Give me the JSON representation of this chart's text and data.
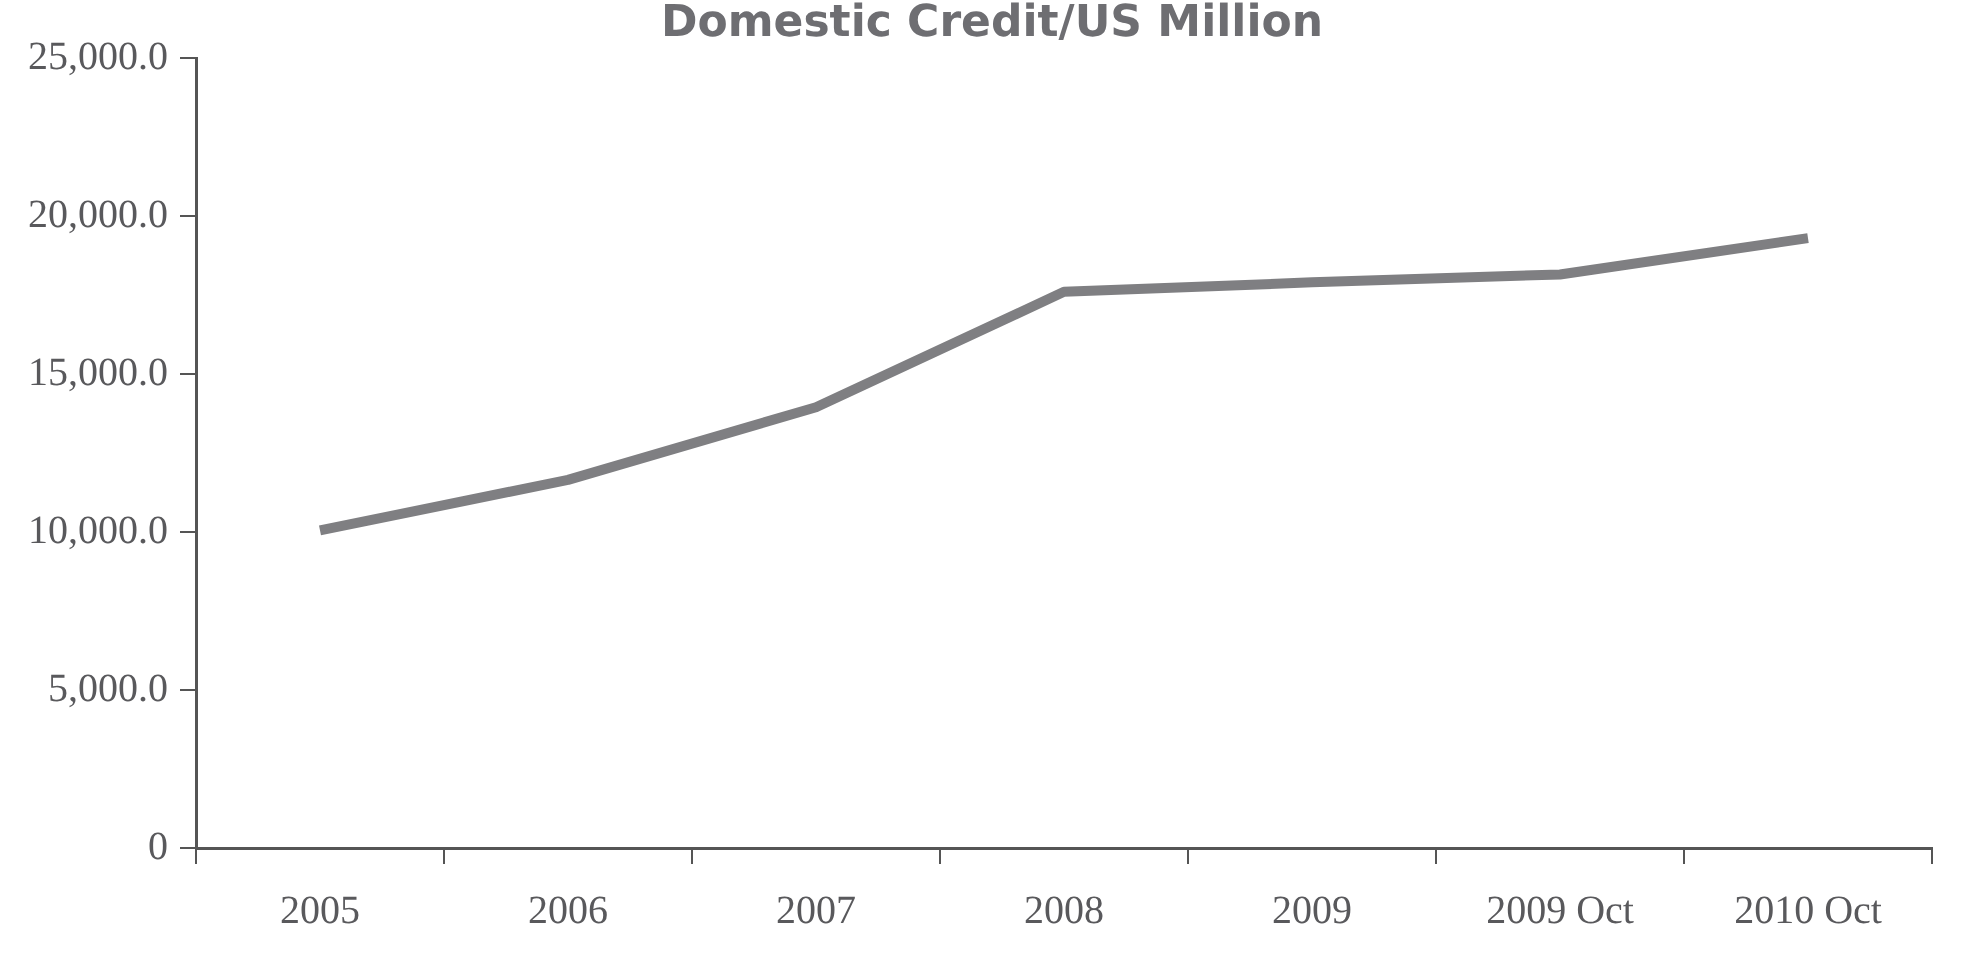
{
  "chart_data": {
    "type": "line",
    "title": "Domestic Credit/US Million",
    "categories": [
      "2005",
      "2006",
      "2007",
      "2008",
      "2009",
      "2009 Oct",
      "2010 Oct"
    ],
    "series": [
      {
        "color": "#7f7f82",
        "values": [
          10050,
          11650,
          13950,
          17600,
          17900,
          18150,
          19300
        ]
      }
    ],
    "ylim": [
      0,
      25000
    ],
    "yticks": [
      0,
      {
        "value": 5000,
        "label": "5,000.0"
      },
      {
        "value": 10000,
        "label": "10,000.0"
      },
      {
        "value": 15000,
        "label": "15,000.0"
      },
      {
        "value": 20000,
        "label": "20,000.0"
      },
      {
        "value": 25000,
        "label": "25,000.0"
      }
    ],
    "grid": false,
    "legend": false,
    "marker": "none",
    "line_style": "solid"
  }
}
